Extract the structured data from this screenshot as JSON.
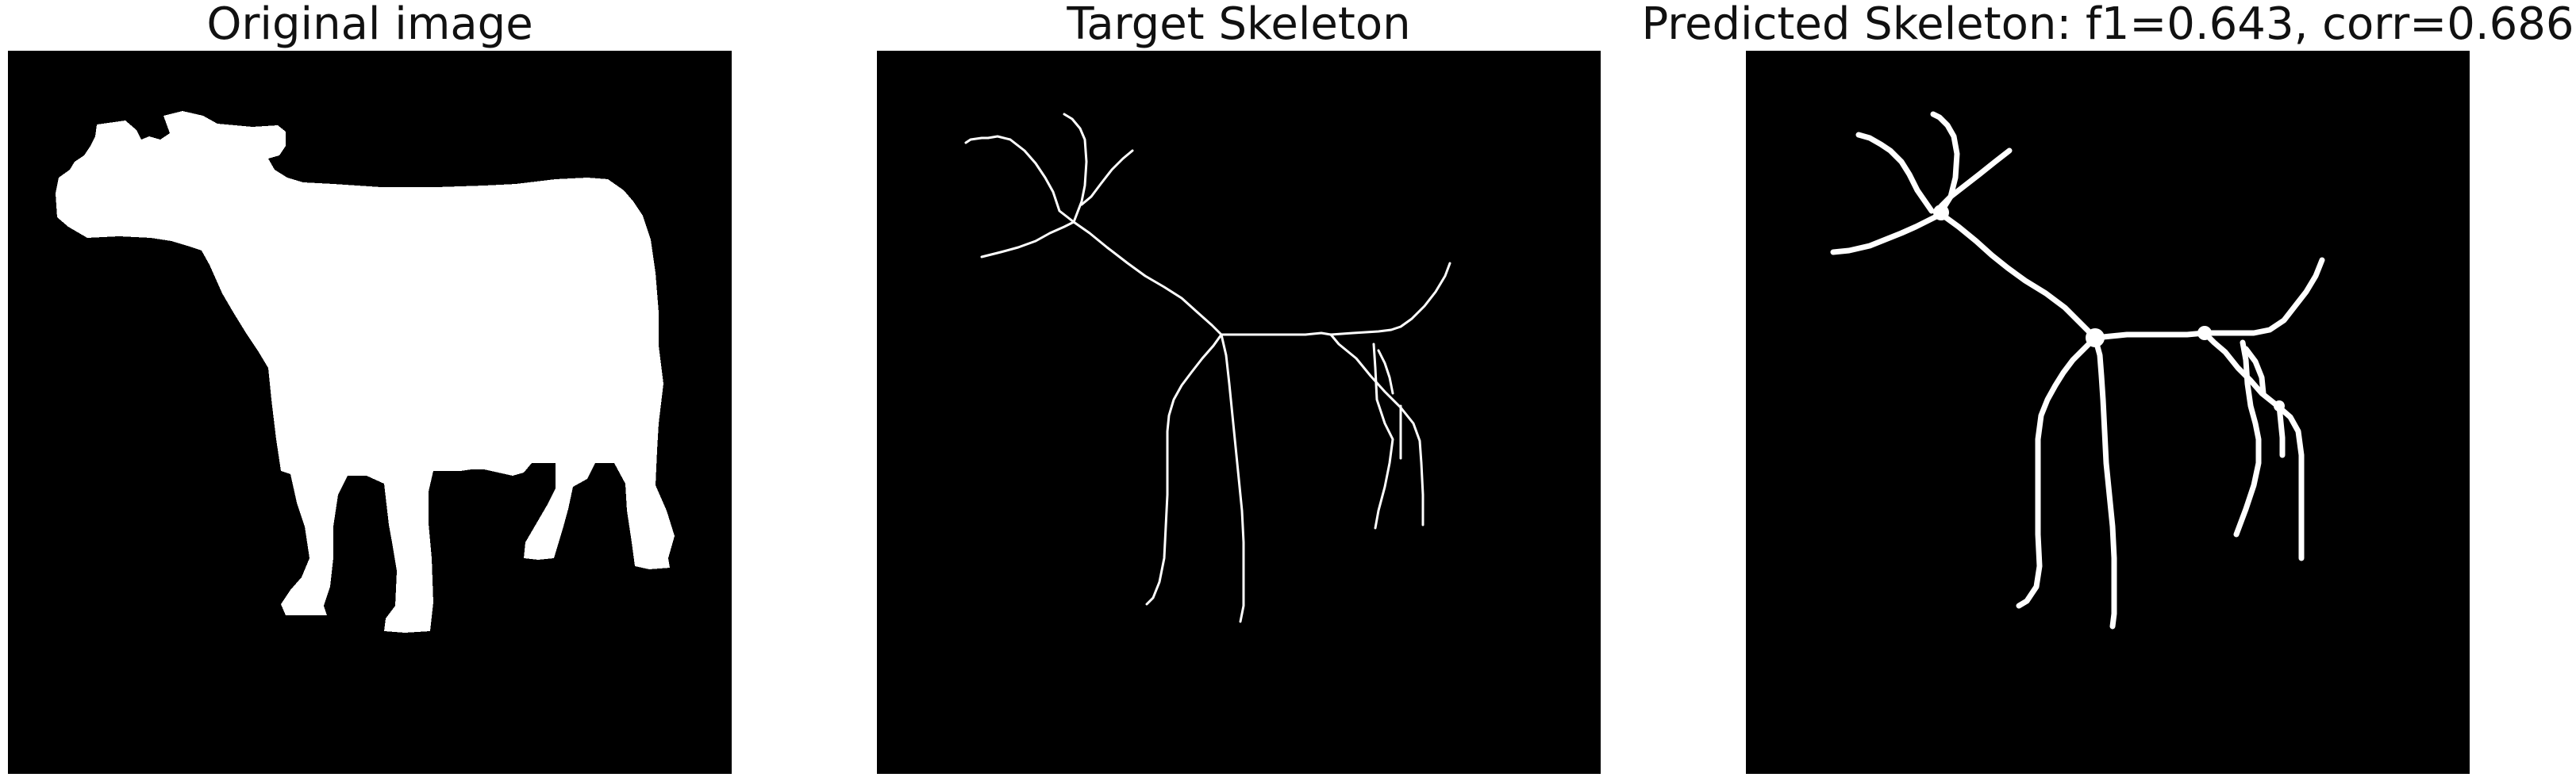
{
  "panels": [
    {
      "title": "Original image"
    },
    {
      "title": "Target Skeleton"
    },
    {
      "title": "Predicted Skeleton: f1=0.643, corr=0.686"
    }
  ],
  "colors": {
    "background": "#ffffff",
    "image_background": "#000000",
    "foreground": "#ffffff",
    "text": "#111111"
  }
}
